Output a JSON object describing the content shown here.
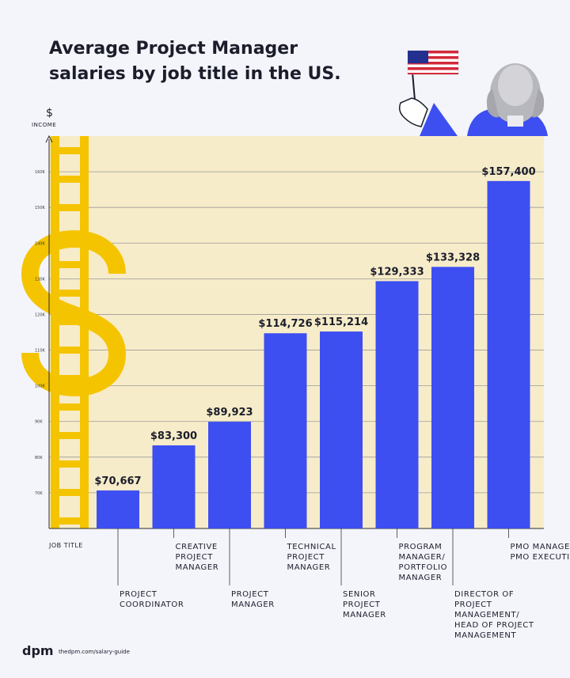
{
  "chart_data": {
    "type": "bar",
    "title": [
      "Average Project Manager",
      "salaries by job title in the US."
    ],
    "y_axis": {
      "symbol": "$",
      "label": "INCOME"
    },
    "xlabel": "JOB TITLE",
    "ylim": [
      60000,
      170000
    ],
    "y_ticks": [
      {
        "value": 70000,
        "label": "70K"
      },
      {
        "value": 80000,
        "label": "80K"
      },
      {
        "value": 90000,
        "label": "90K"
      },
      {
        "value": 100000,
        "label": "100K"
      },
      {
        "value": 110000,
        "label": "110K"
      },
      {
        "value": 120000,
        "label": "120K"
      },
      {
        "value": 130000,
        "label": "130K"
      },
      {
        "value": 140000,
        "label": "140K"
      },
      {
        "value": 150000,
        "label": "150K"
      },
      {
        "value": 160000,
        "label": "160K"
      }
    ],
    "bars": [
      {
        "category": [
          "PROJECT",
          "COORDINATOR"
        ],
        "value": 70667,
        "label": "$70,667",
        "label_pos": "low"
      },
      {
        "category": [
          "CREATIVE",
          "PROJECT",
          "MANAGER"
        ],
        "value": 83300,
        "label": "$83,300",
        "label_pos": "high"
      },
      {
        "category": [
          "PROJECT",
          "MANAGER"
        ],
        "value": 89923,
        "label": "$89,923",
        "label_pos": "low"
      },
      {
        "category": [
          "TECHNICAL",
          "PROJECT",
          "MANAGER"
        ],
        "value": 114726,
        "label": "$114,726",
        "label_pos": "high"
      },
      {
        "category": [
          "SENIOR",
          "PROJECT",
          "MANAGER"
        ],
        "value": 115214,
        "label": "$115,214",
        "label_pos": "low"
      },
      {
        "category": [
          "PROGRAM",
          "MANAGER/",
          "PORTFOLIO",
          "MANAGER"
        ],
        "value": 129333,
        "label": "$129,333",
        "label_pos": "high"
      },
      {
        "category": [
          "DIRECTOR OF",
          "PROJECT",
          "MANAGEMENT/",
          "HEAD OF PROJECT",
          "MANAGEMENT"
        ],
        "value": 133328,
        "label": "$133,328",
        "label_pos": "low"
      },
      {
        "category": [
          "PMO MANAGER/",
          "PMO EXECUTIVE"
        ],
        "value": 157400,
        "label": "$157,400",
        "label_pos": "high"
      }
    ],
    "grid": true,
    "colors": {
      "bar": "#3d4ff0",
      "plot_bg": "#f7ecc9",
      "accent": "#f5c400"
    }
  },
  "footer": {
    "logo": "dpm",
    "url": "thedpm.com/salary-guide"
  }
}
